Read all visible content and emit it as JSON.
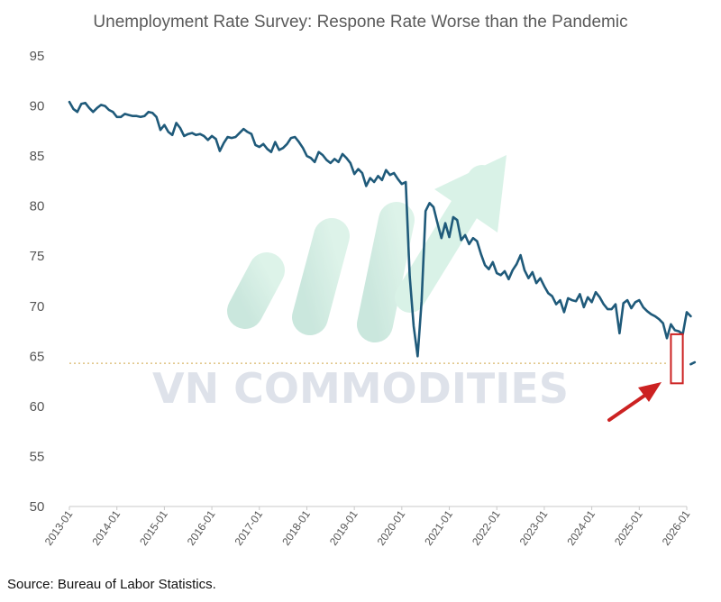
{
  "chart_data": {
    "type": "line",
    "title": "Unemployment Rate Survey: Respone Rate Worse than the Pandemic",
    "source": "Source: Bureau of Labor Statistics.",
    "watermark": "VN COMMODITIES",
    "ylim": [
      50,
      95
    ],
    "y_ticks": [
      95,
      90,
      85,
      80,
      75,
      70,
      65,
      60,
      55,
      50
    ],
    "x_ticks": [
      "2013-01",
      "2014-01",
      "2015-01",
      "2016-01",
      "2017-01",
      "2018-01",
      "2019-01",
      "2020-01",
      "2021-01",
      "2022-01",
      "2023-01",
      "2024-01",
      "2025-01",
      "2026-01"
    ],
    "xlim": [
      "2013-01",
      "2026-01"
    ],
    "grid": false,
    "reference_line": {
      "y": 64.3,
      "style": "dotted",
      "color": "#d9b56a"
    },
    "highlight_box": {
      "x_start": "2025-09",
      "x_end": "2025-12",
      "y_bottom": 62.3,
      "y_top": 67.2,
      "color": "#cc2222"
    },
    "series": [
      {
        "color": "#1f5a7a",
        "points": [
          [
            "2013-01",
            90.4
          ],
          [
            "2013-02",
            89.7
          ],
          [
            "2013-03",
            89.4
          ],
          [
            "2013-04",
            90.2
          ],
          [
            "2013-05",
            90.3
          ],
          [
            "2013-06",
            89.8
          ],
          [
            "2013-07",
            89.4
          ],
          [
            "2013-08",
            89.8
          ],
          [
            "2013-09",
            90.1
          ],
          [
            "2013-10",
            90.0
          ],
          [
            "2013-11",
            89.6
          ],
          [
            "2013-12",
            89.4
          ],
          [
            "2014-01",
            88.9
          ],
          [
            "2014-02",
            88.9
          ],
          [
            "2014-03",
            89.2
          ],
          [
            "2014-04",
            89.1
          ],
          [
            "2014-05",
            89.0
          ],
          [
            "2014-06",
            89.0
          ],
          [
            "2014-07",
            88.9
          ],
          [
            "2014-08",
            89.0
          ],
          [
            "2014-09",
            89.4
          ],
          [
            "2014-10",
            89.3
          ],
          [
            "2014-11",
            88.9
          ],
          [
            "2014-12",
            87.6
          ],
          [
            "2015-01",
            88.1
          ],
          [
            "2015-02",
            87.4
          ],
          [
            "2015-03",
            87.1
          ],
          [
            "2015-04",
            88.3
          ],
          [
            "2015-05",
            87.8
          ],
          [
            "2015-06",
            87.0
          ],
          [
            "2015-07",
            87.2
          ],
          [
            "2015-08",
            87.3
          ],
          [
            "2015-09",
            87.1
          ],
          [
            "2015-10",
            87.2
          ],
          [
            "2015-11",
            87.0
          ],
          [
            "2015-12",
            86.6
          ],
          [
            "2016-01",
            87.0
          ],
          [
            "2016-02",
            86.7
          ],
          [
            "2016-03",
            85.5
          ],
          [
            "2016-04",
            86.3
          ],
          [
            "2016-05",
            86.9
          ],
          [
            "2016-06",
            86.8
          ],
          [
            "2016-07",
            86.9
          ],
          [
            "2016-08",
            87.3
          ],
          [
            "2016-09",
            87.7
          ],
          [
            "2016-10",
            87.4
          ],
          [
            "2016-11",
            87.2
          ],
          [
            "2016-12",
            86.1
          ],
          [
            "2017-01",
            85.9
          ],
          [
            "2017-02",
            86.2
          ],
          [
            "2017-03",
            85.7
          ],
          [
            "2017-04",
            85.4
          ],
          [
            "2017-05",
            86.4
          ],
          [
            "2017-06",
            85.6
          ],
          [
            "2017-07",
            85.8
          ],
          [
            "2017-08",
            86.2
          ],
          [
            "2017-09",
            86.8
          ],
          [
            "2017-10",
            86.9
          ],
          [
            "2017-11",
            86.4
          ],
          [
            "2017-12",
            85.8
          ],
          [
            "2018-01",
            85.0
          ],
          [
            "2018-02",
            84.8
          ],
          [
            "2018-03",
            84.4
          ],
          [
            "2018-04",
            85.4
          ],
          [
            "2018-05",
            85.1
          ],
          [
            "2018-06",
            84.6
          ],
          [
            "2018-07",
            84.3
          ],
          [
            "2018-08",
            84.7
          ],
          [
            "2018-09",
            84.4
          ],
          [
            "2018-10",
            85.2
          ],
          [
            "2018-11",
            84.8
          ],
          [
            "2018-12",
            84.3
          ],
          [
            "2019-01",
            83.2
          ],
          [
            "2019-02",
            83.7
          ],
          [
            "2019-03",
            83.3
          ],
          [
            "2019-04",
            82.0
          ],
          [
            "2019-05",
            82.8
          ],
          [
            "2019-06",
            82.4
          ],
          [
            "2019-07",
            83.0
          ],
          [
            "2019-08",
            82.6
          ],
          [
            "2019-09",
            83.6
          ],
          [
            "2019-10",
            83.1
          ],
          [
            "2019-11",
            83.3
          ],
          [
            "2019-12",
            82.7
          ],
          [
            "2020-01",
            82.2
          ],
          [
            "2020-02",
            82.4
          ],
          [
            "2020-03",
            73.0
          ],
          [
            "2020-04",
            68.0
          ],
          [
            "2020-05",
            65.0
          ],
          [
            "2020-06",
            70.5
          ],
          [
            "2020-07",
            79.5
          ],
          [
            "2020-08",
            80.3
          ],
          [
            "2020-09",
            79.9
          ],
          [
            "2020-10",
            78.3
          ],
          [
            "2020-11",
            76.8
          ],
          [
            "2020-12",
            78.3
          ],
          [
            "2021-01",
            76.9
          ],
          [
            "2021-02",
            78.9
          ],
          [
            "2021-03",
            78.6
          ],
          [
            "2021-04",
            76.6
          ],
          [
            "2021-05",
            77.1
          ],
          [
            "2021-06",
            76.2
          ],
          [
            "2021-07",
            76.8
          ],
          [
            "2021-08",
            76.5
          ],
          [
            "2021-09",
            75.2
          ],
          [
            "2021-10",
            74.1
          ],
          [
            "2021-11",
            73.7
          ],
          [
            "2021-12",
            74.4
          ],
          [
            "2022-01",
            73.3
          ],
          [
            "2022-02",
            73.1
          ],
          [
            "2022-03",
            73.5
          ],
          [
            "2022-04",
            72.7
          ],
          [
            "2022-05",
            73.6
          ],
          [
            "2022-06",
            74.2
          ],
          [
            "2022-07",
            75.1
          ],
          [
            "2022-08",
            73.6
          ],
          [
            "2022-09",
            72.8
          ],
          [
            "2022-10",
            73.4
          ],
          [
            "2022-11",
            72.3
          ],
          [
            "2022-12",
            72.8
          ],
          [
            "2023-01",
            72.0
          ],
          [
            "2023-02",
            71.3
          ],
          [
            "2023-03",
            71.0
          ],
          [
            "2023-04",
            70.2
          ],
          [
            "2023-05",
            70.6
          ],
          [
            "2023-06",
            69.4
          ],
          [
            "2023-07",
            70.8
          ],
          [
            "2023-08",
            70.6
          ],
          [
            "2023-09",
            70.5
          ],
          [
            "2023-10",
            71.2
          ],
          [
            "2023-11",
            69.9
          ],
          [
            "2023-12",
            70.9
          ],
          [
            "2024-01",
            70.4
          ],
          [
            "2024-02",
            71.4
          ],
          [
            "2024-03",
            70.9
          ],
          [
            "2024-04",
            70.2
          ],
          [
            "2024-05",
            69.7
          ],
          [
            "2024-06",
            69.7
          ],
          [
            "2024-07",
            70.2
          ],
          [
            "2024-08",
            67.3
          ],
          [
            "2024-09",
            70.3
          ],
          [
            "2024-10",
            70.6
          ],
          [
            "2024-11",
            69.8
          ],
          [
            "2024-12",
            70.4
          ],
          [
            "2025-01",
            70.6
          ],
          [
            "2025-02",
            69.9
          ],
          [
            "2025-03",
            69.5
          ],
          [
            "2025-04",
            69.2
          ],
          [
            "2025-05",
            69.0
          ],
          [
            "2025-06",
            68.7
          ],
          [
            "2025-07",
            68.3
          ],
          [
            "2025-08",
            66.8
          ],
          [
            "2025-09",
            68.2
          ],
          [
            "2025-10",
            67.6
          ],
          [
            "2025-11",
            67.5
          ],
          [
            "2025-12",
            67.2
          ],
          [
            "2026-01",
            69.4
          ],
          [
            "2026-02",
            69.0
          ]
        ]
      },
      {
        "color": "#1f5a7a",
        "points": [
          [
            "2026-02",
            64.2
          ],
          [
            "2026-03",
            64.4
          ]
        ]
      }
    ]
  }
}
